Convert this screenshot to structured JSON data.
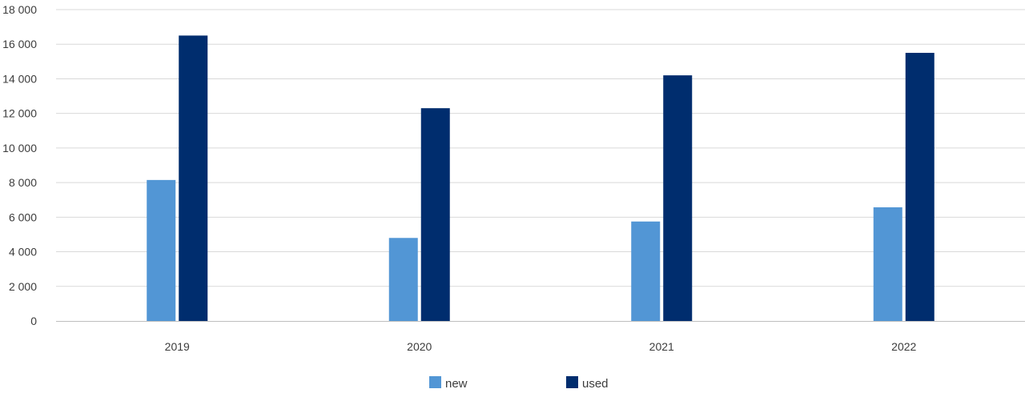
{
  "chart_data": {
    "type": "bar",
    "categories": [
      "2019",
      "2020",
      "2021",
      "2022"
    ],
    "series": [
      {
        "name": "new",
        "color": "#5296d5",
        "values": [
          8150,
          4800,
          5750,
          6570
        ]
      },
      {
        "name": "used",
        "color": "#002d6e",
        "values": [
          16500,
          12300,
          14200,
          15500
        ]
      }
    ],
    "y_ticks": [
      "0",
      "2 000",
      "4 000",
      "6 000",
      "8 000",
      "10 000",
      "12 000",
      "14 000",
      "16 000",
      "18 000"
    ],
    "ylim": [
      0,
      18000
    ],
    "ytick_step": 2000,
    "grid": true,
    "legend": {
      "position": "bottom-center"
    },
    "gridline_color": "#d9d9d9",
    "axis_color": "#bfbfbf"
  }
}
